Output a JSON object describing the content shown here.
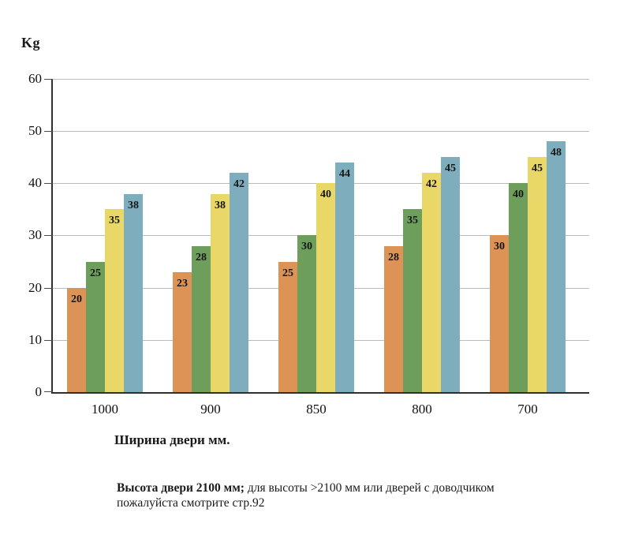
{
  "chart_data": {
    "type": "bar",
    "title": "Kg",
    "ylabel": "Kg",
    "xlabel": "Ширина двери мм.",
    "categories": [
      "1000",
      "900",
      "850",
      "800",
      "700"
    ],
    "series": [
      {
        "name": "orange",
        "color": "#DC9355",
        "values": [
          20,
          23,
          25,
          28,
          30
        ]
      },
      {
        "name": "green",
        "color": "#6D9E5C",
        "values": [
          25,
          28,
          30,
          35,
          40
        ]
      },
      {
        "name": "yellow",
        "color": "#E9D768",
        "values": [
          35,
          38,
          40,
          42,
          45
        ]
      },
      {
        "name": "blue",
        "color": "#7EAEBD",
        "values": [
          38,
          42,
          44,
          45,
          48
        ]
      }
    ],
    "ylim": [
      0,
      60
    ],
    "y_ticks": [
      0,
      10,
      20,
      30,
      40,
      50,
      60
    ],
    "grid": true,
    "legend_position": "none",
    "bar_value_labels": true
  },
  "note": {
    "bold": "Высота двери 2100 мм;",
    "text": " для высоты >2100 мм или дверей с доводчиком пожалуйста смотрите стр.92"
  },
  "colors": {
    "grid": "#BBBBBB",
    "axis": "#2F2F2F",
    "value_text": "#151515"
  }
}
